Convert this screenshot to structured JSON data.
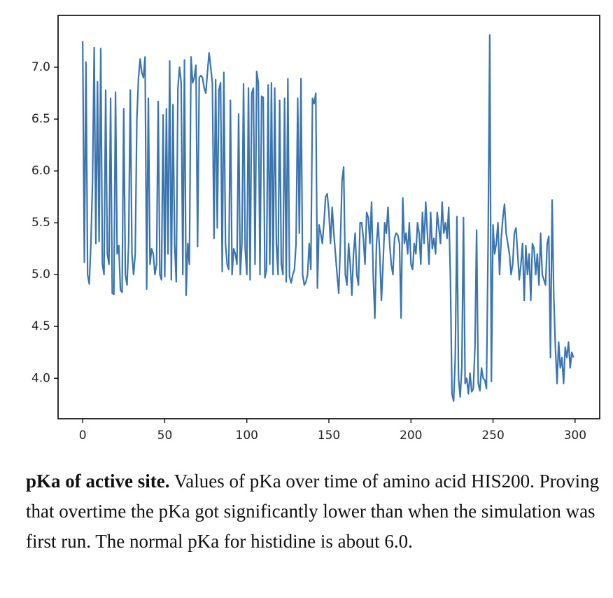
{
  "chart_data": {
    "type": "line",
    "color": "#3a75b0",
    "x": [
      0,
      1,
      2,
      3,
      4,
      5,
      6,
      7,
      8,
      9,
      10,
      11,
      12,
      13,
      14,
      15,
      16,
      17,
      18,
      19,
      20,
      21,
      22,
      23,
      24,
      25,
      26,
      27,
      28,
      29,
      30,
      31,
      32,
      33,
      34,
      35,
      36,
      37,
      38,
      39,
      40,
      41,
      42,
      43,
      44,
      45,
      46,
      47,
      48,
      49,
      50,
      51,
      52,
      53,
      54,
      55,
      56,
      57,
      58,
      59,
      60,
      61,
      62,
      63,
      64,
      65,
      66,
      67,
      68,
      69,
      70,
      71,
      72,
      73,
      74,
      75,
      76,
      77,
      78,
      79,
      80,
      81,
      82,
      83,
      84,
      85,
      86,
      87,
      88,
      89,
      90,
      91,
      92,
      93,
      94,
      95,
      96,
      97,
      98,
      99,
      100,
      101,
      102,
      103,
      104,
      105,
      106,
      107,
      108,
      109,
      110,
      111,
      112,
      113,
      114,
      115,
      116,
      117,
      118,
      119,
      120,
      121,
      122,
      123,
      124,
      125,
      126,
      127,
      128,
      129,
      130,
      131,
      132,
      133,
      134,
      135,
      136,
      137,
      138,
      139,
      140,
      141,
      142,
      143,
      144,
      145,
      146,
      147,
      148,
      149,
      150,
      151,
      152,
      153,
      154,
      155,
      156,
      157,
      158,
      159,
      160,
      161,
      162,
      163,
      164,
      165,
      166,
      167,
      168,
      169,
      170,
      171,
      172,
      173,
      174,
      175,
      176,
      177,
      178,
      179,
      180,
      181,
      182,
      183,
      184,
      185,
      186,
      187,
      188,
      189,
      190,
      191,
      192,
      193,
      194,
      195,
      196,
      197,
      198,
      199,
      200,
      201,
      202,
      203,
      204,
      205,
      206,
      207,
      208,
      209,
      210,
      211,
      212,
      213,
      214,
      215,
      216,
      217,
      218,
      219,
      220,
      221,
      222,
      223,
      224,
      225,
      226,
      227,
      228,
      229,
      230,
      231,
      232,
      233,
      234,
      235,
      236,
      237,
      238,
      239,
      240,
      241,
      242,
      243,
      244,
      245,
      246,
      247,
      248,
      249,
      250,
      251,
      252,
      253,
      254,
      255,
      256,
      257,
      258,
      259,
      260,
      261,
      262,
      263,
      264,
      265,
      266,
      267,
      268,
      269,
      270,
      271,
      272,
      273,
      274,
      275,
      276,
      277,
      278,
      279,
      280,
      281,
      282,
      283,
      284,
      285,
      286,
      287,
      288,
      289,
      290,
      291,
      292,
      293,
      294,
      295,
      296,
      297,
      298,
      299
    ],
    "values": [
      7.25,
      5.12,
      7.05,
      5.0,
      4.91,
      5.3,
      5.9,
      7.19,
      5.3,
      6.86,
      5.32,
      7.18,
      5.1,
      5.0,
      6.78,
      5.2,
      5.1,
      6.7,
      4.82,
      4.81,
      6.76,
      5.2,
      5.28,
      4.85,
      4.83,
      6.6,
      5.0,
      4.9,
      5.3,
      6.78,
      5.2,
      5.0,
      5.2,
      6.5,
      6.9,
      7.08,
      6.95,
      6.9,
      7.1,
      4.86,
      6.7,
      5.1,
      5.25,
      5.2,
      5.0,
      5.1,
      6.67,
      5.0,
      4.95,
      6.54,
      4.98,
      6.6,
      5.2,
      7.06,
      4.95,
      6.64,
      5.3,
      4.93,
      6.8,
      7.0,
      6.85,
      5.0,
      7.07,
      4.8,
      5.3,
      5.1,
      7.1,
      6.85,
      6.9,
      7.02,
      5.27,
      6.9,
      6.92,
      6.9,
      6.8,
      6.75,
      6.95,
      7.14,
      7.0,
      6.85,
      5.35,
      6.88,
      5.45,
      6.78,
      6.85,
      5.03,
      6.95,
      5.3,
      5.1,
      5.05,
      6.68,
      5.0,
      5.25,
      5.2,
      5.1,
      6.55,
      5.0,
      5.3,
      6.84,
      5.25,
      5.0,
      6.8,
      4.95,
      6.75,
      6.8,
      5.1,
      6.96,
      6.85,
      5.0,
      6.72,
      6.71,
      4.97,
      5.05,
      6.83,
      5.1,
      6.85,
      5.0,
      6.8,
      5.3,
      5.0,
      6.68,
      5.1,
      5.0,
      6.7,
      4.93,
      6.89,
      4.98,
      4.92,
      5.0,
      5.05,
      5.3,
      6.7,
      5.4,
      6.89,
      5.0,
      4.9,
      4.93,
      5.0,
      5.3,
      5.05,
      6.7,
      6.65,
      6.75,
      4.87,
      5.48,
      5.4,
      5.3,
      5.5,
      5.75,
      5.78,
      5.6,
      5.3,
      5.65,
      5.4,
      5.2,
      5.0,
      4.82,
      5.3,
      5.9,
      6.04,
      5.0,
      4.9,
      5.3,
      5.1,
      4.8,
      5.2,
      5.4,
      5.0,
      4.9,
      5.5,
      5.5,
      5.35,
      5.1,
      5.6,
      5.55,
      5.3,
      5.7,
      5.0,
      4.58,
      5.3,
      5.5,
      5.2,
      4.75,
      5.1,
      5.5,
      5.4,
      5.65,
      5.3,
      5.1,
      5.0,
      5.35,
      5.4,
      5.38,
      5.3,
      4.58,
      5.74,
      5.3,
      5.4,
      5.2,
      5.5,
      5.1,
      5.05,
      5.3,
      5.2,
      5.5,
      5.4,
      5.1,
      5.6,
      5.3,
      5.7,
      5.4,
      5.1,
      5.6,
      5.25,
      5.35,
      5.2,
      5.6,
      5.45,
      5.3,
      5.7,
      5.4,
      5.5,
      5.35,
      5.65,
      5.0,
      3.85,
      3.78,
      4.2,
      5.56,
      4.0,
      3.82,
      4.1,
      5.55,
      3.95,
      4.0,
      3.85,
      4.05,
      3.87,
      3.9,
      4.3,
      5.43,
      3.95,
      3.88,
      4.1,
      4.0,
      3.98,
      3.9,
      5.3,
      7.31,
      3.97,
      5.48,
      5.2,
      5.3,
      5.5,
      5.0,
      5.35,
      5.55,
      5.68,
      5.4,
      5.3,
      5.2,
      5.0,
      5.1,
      5.4,
      5.45,
      5.2,
      4.95,
      5.1,
      5.3,
      4.75,
      5.28,
      5.0,
      5.2,
      4.75,
      5.3,
      5.25,
      5.0,
      5.2,
      4.9,
      5.4,
      5.0,
      4.95,
      4.9,
      5.3,
      5.37,
      4.2,
      5.72,
      4.8,
      4.3,
      3.95,
      4.35,
      4.1,
      4.2,
      3.95,
      4.3,
      4.2,
      4.35,
      4.1,
      4.25,
      4.2
    ],
    "xlim": [
      -15,
      315
    ],
    "xticks": [
      0,
      50,
      100,
      150,
      200,
      250,
      300
    ],
    "ylim": [
      3.61,
      7.5
    ],
    "yticks": [
      {
        "value": 4,
        "label": "4.0"
      },
      {
        "value": 4.5,
        "label": "4.5"
      },
      {
        "value": 5,
        "label": "5.0"
      },
      {
        "value": 5.5,
        "label": "5.5"
      },
      {
        "value": 6,
        "label": "6.0"
      },
      {
        "value": 6.5,
        "label": "6.5"
      },
      {
        "value": 7,
        "label": "7.0"
      }
    ]
  },
  "caption": {
    "bold": "pKa of active site.",
    "text": "Values of pKa over time of amino acid HIS200. Proving that overtime the pKa got significantly lower than when the simulation was first run. The normal pKa for histidine is about 6.0."
  }
}
